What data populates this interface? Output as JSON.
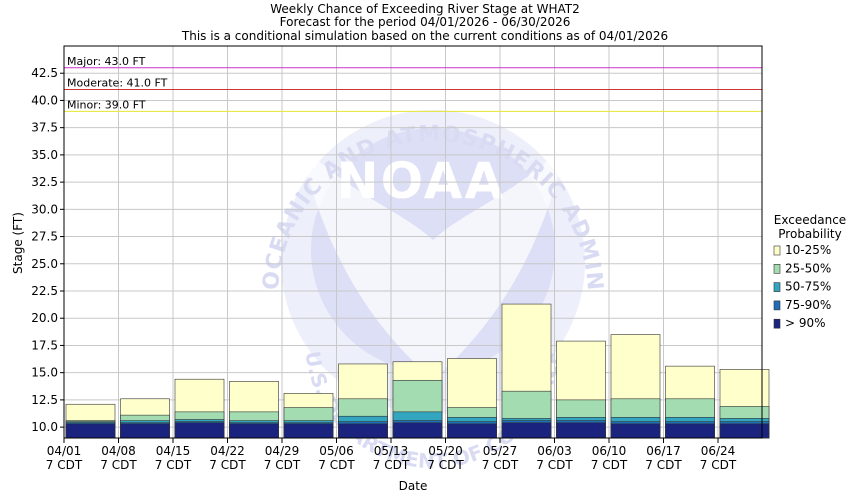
{
  "chart_data": {
    "type": "bar",
    "title": [
      "Weekly Chance of Exceeding River Stage at WHAT2",
      "Forecast for the period 04/01/2026 - 06/30/2026",
      "This is a conditional simulation based on the current conditions as of 04/01/2026"
    ],
    "xlabel": "Date",
    "ylabel": "Stage (FT)",
    "ylim": [
      9.0,
      45.0
    ],
    "yticks": [
      "10.0",
      "12.5",
      "15.0",
      "17.5",
      "20.0",
      "22.5",
      "25.0",
      "27.5",
      "30.0",
      "32.5",
      "35.0",
      "37.5",
      "40.0",
      "42.5"
    ],
    "categories": [
      "04/01",
      "04/08",
      "04/15",
      "04/22",
      "04/29",
      "05/06",
      "05/13",
      "05/20",
      "05/27",
      "06/03",
      "06/10",
      "06/17",
      "06/24"
    ],
    "tick_sublabel": "7 CDT",
    "grid": true,
    "legend_position": "right",
    "legend_title": [
      "Exceedance",
      "Probability"
    ],
    "series": [
      {
        "name": "> 90%",
        "color": "#1a237e",
        "values": [
          10.3,
          10.3,
          10.4,
          10.3,
          10.3,
          10.3,
          10.4,
          10.3,
          10.4,
          10.4,
          10.3,
          10.3,
          10.3
        ]
      },
      {
        "name": "75-90%",
        "color": "#1e6fb8",
        "values": [
          10.4,
          10.4,
          10.5,
          10.4,
          10.4,
          10.5,
          10.6,
          10.5,
          10.6,
          10.6,
          10.5,
          10.5,
          10.5
        ]
      },
      {
        "name": "50-75%",
        "color": "#33a5bf",
        "values": [
          10.5,
          10.6,
          10.7,
          10.6,
          10.6,
          11.0,
          11.4,
          10.9,
          10.8,
          10.9,
          10.9,
          10.9,
          10.8
        ]
      },
      {
        "name": "25-50%",
        "color": "#a3dcb1",
        "values": [
          10.6,
          11.1,
          11.4,
          11.4,
          11.8,
          12.6,
          14.3,
          11.8,
          13.3,
          12.5,
          12.6,
          12.6,
          11.9
        ]
      },
      {
        "name": "10-25%",
        "color": "#ffffcc",
        "values": [
          12.1,
          12.6,
          14.4,
          14.2,
          13.1,
          15.8,
          16.0,
          16.3,
          21.3,
          17.9,
          18.5,
          15.6,
          15.3
        ]
      }
    ],
    "thresholds": [
      {
        "label": "Major: 43.0 FT",
        "value": 43.0,
        "color": "#cc33cc"
      },
      {
        "label": "Moderate: 41.0 FT",
        "value": 41.0,
        "color": "#cc3333"
      },
      {
        "label": "Minor: 39.0 FT",
        "value": 39.0,
        "color": "#e6e633"
      }
    ],
    "watermark": [
      "NATIONAL OCEANIC AND ATMOSPHERIC ADMINISTRATION",
      "NOAA",
      "U.S. DEPARTMENT OF COMMERCE"
    ]
  }
}
